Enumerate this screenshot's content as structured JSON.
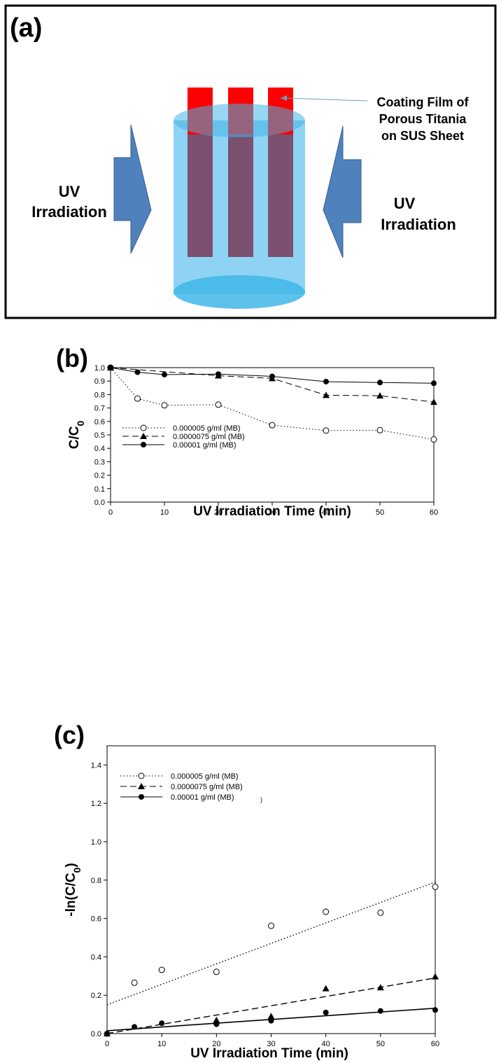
{
  "panel_a": {
    "label": "(a)",
    "callout": [
      "Coating Film of",
      "Porous Titania",
      "on SUS Sheet"
    ],
    "left_arrow_label": [
      "UV",
      "Irradiation"
    ],
    "right_arrow_label": [
      "UV",
      "Irradiation"
    ],
    "colors": {
      "cylinder": "#8fd3f4",
      "cylinder_top": "#3fb6e8",
      "coating": "#ff0000",
      "sheet": "#7b5070",
      "arrow": "#4f81bd"
    }
  },
  "chart_data": [
    {
      "panel_label": "(b)",
      "type": "line",
      "title": "",
      "xlabel": "UV Irradiation Time (min)",
      "ylabel": "C/C",
      "ylabel_sub": "0",
      "xlim": [
        0,
        60
      ],
      "ylim": [
        0,
        1.0
      ],
      "xticks": [
        "0",
        "10",
        "20",
        "30",
        "40",
        "50",
        "60"
      ],
      "yticks": [
        "0.0",
        "0.1",
        "0.2",
        "0.3",
        "0.4",
        "0.5",
        "0.6",
        "0.7",
        "0.8",
        "0.9",
        "1.0"
      ],
      "grid": false,
      "legend_position": "bottom-left",
      "series": [
        {
          "name": "0.000005 g/ml (MB)",
          "marker": "open-circle",
          "line": "dotted",
          "x": [
            0,
            5,
            10,
            20,
            30,
            40,
            50,
            60
          ],
          "y": [
            1.0,
            0.77,
            0.72,
            0.725,
            0.572,
            0.532,
            0.535,
            0.466
          ]
        },
        {
          "name": "0.0000075 g/ml (MB)",
          "marker": "filled-triangle",
          "line": "dashed",
          "x": [
            0,
            20,
            30,
            40,
            50,
            60
          ],
          "y": [
            1.0,
            0.94,
            0.92,
            0.795,
            0.791,
            0.744
          ]
        },
        {
          "name": "0.00001 g/ml (MB)",
          "marker": "filled-circle",
          "line": "solid",
          "x": [
            0,
            5,
            10,
            20,
            30,
            40,
            50,
            60
          ],
          "y": [
            1.0,
            0.966,
            0.948,
            0.952,
            0.935,
            0.896,
            0.889,
            0.884
          ]
        }
      ]
    },
    {
      "panel_label": "(c)",
      "type": "scatter",
      "title": "",
      "xlabel": "UV Irradiation Time (min)",
      "ylabel": "-ln(C/C",
      "ylabel_sub": "0",
      "ylabel_end": ")",
      "xlim": [
        0,
        60
      ],
      "ylim": [
        0,
        1.5
      ],
      "xticks": [
        "0",
        "10",
        "20",
        "30",
        "40",
        "50",
        "60"
      ],
      "yticks": [
        "0.0",
        "0.2",
        "0.4",
        "0.6",
        "0.8",
        "1.0",
        "1.2",
        "1.4"
      ],
      "grid": false,
      "legend_position": "top-left",
      "legend_stray": ")",
      "series": [
        {
          "name": "0.000005 g/ml (MB)",
          "marker": "open-circle",
          "line": "dotted",
          "x": [
            5,
            10,
            20,
            30,
            40,
            50,
            60
          ],
          "y": [
            0.265,
            0.332,
            0.322,
            0.562,
            0.635,
            0.63,
            0.765
          ],
          "fit": {
            "x": [
              0,
              60
            ],
            "y": [
              0.15,
              0.79
            ]
          }
        },
        {
          "name": "0.0000075 g/ml (MB)",
          "marker": "filled-triangle",
          "line": "dashed",
          "x": [
            0,
            20,
            30,
            40,
            50,
            60
          ],
          "y": [
            0.0,
            0.07,
            0.09,
            0.235,
            0.24,
            0.297
          ],
          "fit": {
            "x": [
              0,
              60
            ],
            "y": [
              -0.02,
              0.29
            ]
          }
        },
        {
          "name": "0.00001 g/ml (MB)",
          "marker": "filled-circle",
          "line": "solid",
          "x": [
            0,
            5,
            10,
            20,
            30,
            40,
            50,
            60
          ],
          "y": [
            0.0,
            0.035,
            0.054,
            0.049,
            0.067,
            0.11,
            0.118,
            0.123
          ],
          "fit": {
            "x": [
              0,
              60
            ],
            "y": [
              0.015,
              0.132
            ]
          }
        }
      ]
    }
  ]
}
